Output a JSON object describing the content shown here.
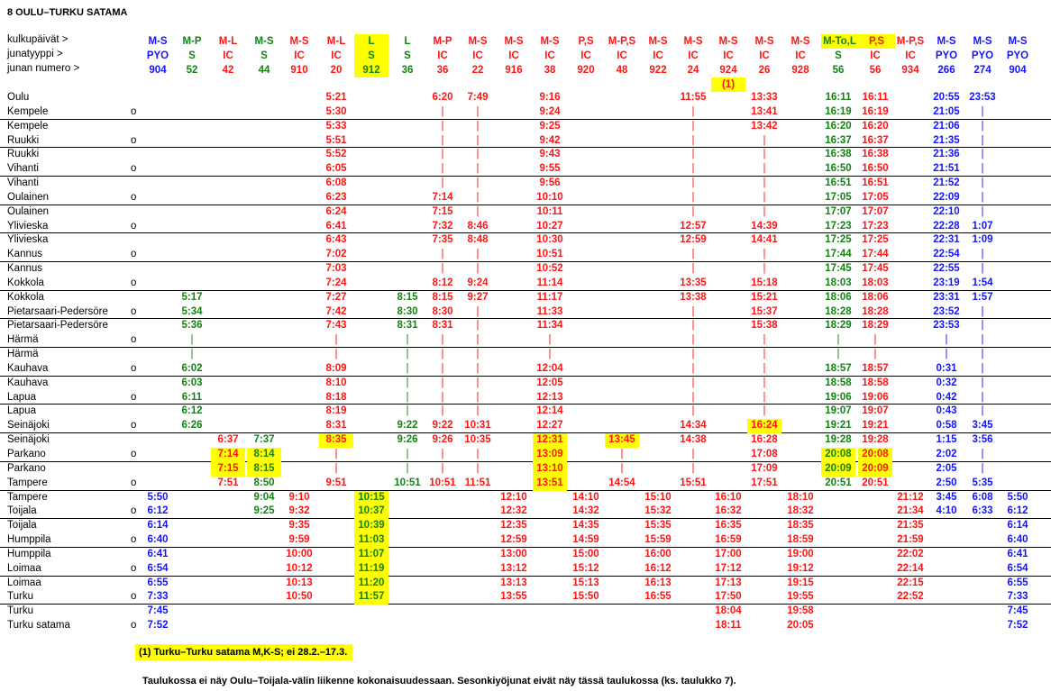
{
  "title": "8 OULU–TURKU SATAMA",
  "header_labels": {
    "days": "kulkupäivät >",
    "type": "junatyyppi >",
    "number": "junan numero >"
  },
  "colors": {
    "blue": "#1414ff",
    "green": "#148214",
    "red": "#ff1414",
    "highlight": "#ffff00"
  },
  "columns": [
    {
      "days": "M-S",
      "type": "PYO",
      "number": "904",
      "color": "#1414ff"
    },
    {
      "days": "M-P",
      "type": "S",
      "number": "52",
      "color": "#148214"
    },
    {
      "days": "M-L",
      "type": "IC",
      "number": "42",
      "color": "#ff1414"
    },
    {
      "days": "M-S",
      "type": "S",
      "number": "44",
      "color": "#148214"
    },
    {
      "days": "M-S",
      "type": "IC",
      "number": "910",
      "color": "#ff1414"
    },
    {
      "days": "M-L",
      "type": "IC",
      "number": "20",
      "color": "#ff1414"
    },
    {
      "days": "L",
      "type": "S",
      "number": "912",
      "color": "#148214",
      "highlight_header": true
    },
    {
      "days": "L",
      "type": "S",
      "number": "36",
      "color": "#148214"
    },
    {
      "days": "M-P",
      "type": "IC",
      "number": "36",
      "color": "#ff1414"
    },
    {
      "days": "M-S",
      "type": "IC",
      "number": "22",
      "color": "#ff1414"
    },
    {
      "days": "M-S",
      "type": "IC",
      "number": "916",
      "color": "#ff1414"
    },
    {
      "days": "M-S",
      "type": "IC",
      "number": "38",
      "color": "#ff1414"
    },
    {
      "days": "P,S",
      "type": "IC",
      "number": "920",
      "color": "#ff1414"
    },
    {
      "days": "M-P,S",
      "type": "IC",
      "number": "48",
      "color": "#ff1414"
    },
    {
      "days": "M-S",
      "type": "IC",
      "number": "922",
      "color": "#ff1414"
    },
    {
      "days": "M-S",
      "type": "IC",
      "number": "24",
      "color": "#ff1414"
    },
    {
      "days": "M-S",
      "type": "IC",
      "number": "924",
      "color": "#ff1414",
      "note": "(1)"
    },
    {
      "days": "M-S",
      "type": "IC",
      "number": "26",
      "color": "#ff1414"
    },
    {
      "days": "M-S",
      "type": "IC",
      "number": "928",
      "color": "#ff1414"
    },
    {
      "days": "M-To,L",
      "type": "S",
      "number": "56",
      "color": "#148214",
      "highlight_days": true
    },
    {
      "days": "P,S",
      "type": "IC",
      "number": "56",
      "color": "#ff1414",
      "highlight_days": true
    },
    {
      "days": "M-P,S",
      "type": "IC",
      "number": "934",
      "color": "#ff1414"
    },
    {
      "days": "M-S",
      "type": "PYO",
      "number": "266",
      "color": "#1414ff"
    },
    {
      "days": "M-S",
      "type": "PYO",
      "number": "274",
      "color": "#1414ff"
    },
    {
      "days": "M-S",
      "type": "PYO",
      "number": "904",
      "color": "#1414ff"
    }
  ],
  "rows": [
    {
      "station": "Oulu",
      "arr": "",
      "times": {
        "5": "5:21",
        "8": "6:20",
        "9": "7:49",
        "11": "9:16",
        "15": "11:55",
        "17": "13:33",
        "19": "16:11",
        "20": "16:11",
        "22": "20:55",
        "23": "23:53"
      }
    },
    {
      "station": "Kempele",
      "arr": "o",
      "times": {
        "5": "5:30",
        "8": "|",
        "9": "|",
        "11": "9:24",
        "15": "|",
        "17": "13:41",
        "19": "16:19",
        "20": "16:19",
        "22": "21:05",
        "23": "|"
      }
    },
    {
      "station": "Kempele",
      "arr": "",
      "times": {
        "5": "5:33",
        "8": "|",
        "9": "|",
        "11": "9:25",
        "15": "|",
        "17": "13:42",
        "19": "16:20",
        "20": "16:20",
        "22": "21:06",
        "23": "|"
      }
    },
    {
      "station": "Ruukki",
      "arr": "o",
      "times": {
        "5": "5:51",
        "8": "|",
        "9": "|",
        "11": "9:42",
        "15": "|",
        "17": "|",
        "19": "16:37",
        "20": "16:37",
        "22": "21:35",
        "23": "|"
      }
    },
    {
      "station": "Ruukki",
      "arr": "",
      "times": {
        "5": "5:52",
        "8": "|",
        "9": "|",
        "11": "9:43",
        "15": "|",
        "17": "|",
        "19": "16:38",
        "20": "16:38",
        "22": "21:36",
        "23": "|"
      }
    },
    {
      "station": "Vihanti",
      "arr": "o",
      "times": {
        "5": "6:05",
        "8": "|",
        "9": "|",
        "11": "9:55",
        "15": "|",
        "17": "|",
        "19": "16:50",
        "20": "16:50",
        "22": "21:51",
        "23": "|"
      }
    },
    {
      "station": "Vihanti",
      "arr": "",
      "times": {
        "5": "6:08",
        "8": "|",
        "9": "|",
        "11": "9:56",
        "15": "|",
        "17": "|",
        "19": "16:51",
        "20": "16:51",
        "22": "21:52",
        "23": "|"
      }
    },
    {
      "station": "Oulainen",
      "arr": "o",
      "times": {
        "5": "6:23",
        "8": "7:14",
        "9": "|",
        "11": "10:10",
        "15": "|",
        "17": "|",
        "19": "17:05",
        "20": "17:05",
        "22": "22:09",
        "23": "|"
      }
    },
    {
      "station": "Oulainen",
      "arr": "",
      "times": {
        "5": "6:24",
        "8": "7:15",
        "9": "|",
        "11": "10:11",
        "15": "|",
        "17": "|",
        "19": "17:07",
        "20": "17:07",
        "22": "22:10",
        "23": "|"
      }
    },
    {
      "station": "Ylivieska",
      "arr": "o",
      "times": {
        "5": "6:41",
        "8": "7:32",
        "9": "8:46",
        "11": "10:27",
        "15": "12:57",
        "17": "14:39",
        "19": "17:23",
        "20": "17:23",
        "22": "22:28",
        "23": "1:07"
      }
    },
    {
      "station": "Ylivieska",
      "arr": "",
      "times": {
        "5": "6:43",
        "8": "7:35",
        "9": "8:48",
        "11": "10:30",
        "15": "12:59",
        "17": "14:41",
        "19": "17:25",
        "20": "17:25",
        "22": "22:31",
        "23": "1:09"
      }
    },
    {
      "station": "Kannus",
      "arr": "o",
      "times": {
        "5": "7:02",
        "8": "|",
        "9": "|",
        "11": "10:51",
        "15": "|",
        "17": "|",
        "19": "17:44",
        "20": "17:44",
        "22": "22:54",
        "23": "|"
      }
    },
    {
      "station": "Kannus",
      "arr": "",
      "times": {
        "5": "7:03",
        "8": "|",
        "9": "|",
        "11": "10:52",
        "15": "|",
        "17": "|",
        "19": "17:45",
        "20": "17:45",
        "22": "22:55",
        "23": "|"
      }
    },
    {
      "station": "Kokkola",
      "arr": "o",
      "times": {
        "5": "7:24",
        "8": "8:12",
        "9": "9:24",
        "11": "11:14",
        "15": "13:35",
        "17": "15:18",
        "19": "18:03",
        "20": "18:03",
        "22": "23:19",
        "23": "1:54"
      }
    },
    {
      "station": "Kokkola",
      "arr": "",
      "times": {
        "1": "5:17",
        "5": "7:27",
        "7": "8:15",
        "8": "8:15",
        "9": "9:27",
        "11": "11:17",
        "15": "13:38",
        "17": "15:21",
        "19": "18:06",
        "20": "18:06",
        "22": "23:31",
        "23": "1:57"
      }
    },
    {
      "station": "Pietarsaari-Pedersöre",
      "arr": "o",
      "times": {
        "1": "5:34",
        "5": "7:42",
        "7": "8:30",
        "8": "8:30",
        "9": "|",
        "11": "11:33",
        "15": "|",
        "17": "15:37",
        "19": "18:28",
        "20": "18:28",
        "22": "23:52",
        "23": "|"
      }
    },
    {
      "station": "Pietarsaari-Pedersöre",
      "arr": "",
      "times": {
        "1": "5:36",
        "5": "7:43",
        "7": "8:31",
        "8": "8:31",
        "9": "|",
        "11": "11:34",
        "15": "|",
        "17": "15:38",
        "19": "18:29",
        "20": "18:29",
        "22": "23:53",
        "23": "|"
      }
    },
    {
      "station": "Härmä",
      "arr": "o",
      "times": {
        "1": "|",
        "5": "|",
        "7": "|",
        "8": "|",
        "9": "|",
        "11": "|",
        "15": "|",
        "17": "|",
        "19": "|",
        "20": "|",
        "22": "|",
        "23": "|"
      }
    },
    {
      "station": "Härmä",
      "arr": "",
      "times": {
        "1": "|",
        "5": "|",
        "7": "|",
        "8": "|",
        "9": "|",
        "11": "|",
        "15": "|",
        "17": "|",
        "19": "|",
        "20": "|",
        "22": "|",
        "23": "|"
      }
    },
    {
      "station": "Kauhava",
      "arr": "o",
      "times": {
        "1": "6:02",
        "5": "8:09",
        "7": "|",
        "8": "|",
        "9": "|",
        "11": "12:04",
        "15": "|",
        "17": "|",
        "19": "18:57",
        "20": "18:57",
        "22": "0:31",
        "23": "|"
      }
    },
    {
      "station": "Kauhava",
      "arr": "",
      "times": {
        "1": "6:03",
        "5": "8:10",
        "7": "|",
        "8": "|",
        "9": "|",
        "11": "12:05",
        "15": "|",
        "17": "|",
        "19": "18:58",
        "20": "18:58",
        "22": "0:32",
        "23": "|"
      }
    },
    {
      "station": "Lapua",
      "arr": "o",
      "times": {
        "1": "6:11",
        "5": "8:18",
        "7": "|",
        "8": "|",
        "9": "|",
        "11": "12:13",
        "15": "|",
        "17": "|",
        "19": "19:06",
        "20": "19:06",
        "22": "0:42",
        "23": "|"
      }
    },
    {
      "station": "Lapua",
      "arr": "",
      "times": {
        "1": "6:12",
        "5": "8:19",
        "7": "|",
        "8": "|",
        "9": "|",
        "11": "12:14",
        "15": "|",
        "17": "|",
        "19": "19:07",
        "20": "19:07",
        "22": "0:43",
        "23": "|"
      }
    },
    {
      "station": "Seinäjoki",
      "arr": "o",
      "times": {
        "1": "6:26",
        "5": "8:31",
        "7": "9:22",
        "8": "9:22",
        "9": "10:31",
        "11": "12:27",
        "15": "14:34",
        "17": "16:24",
        "19": "19:21",
        "20": "19:21",
        "22": "0:58",
        "23": "3:45"
      },
      "highlight": [
        17
      ]
    },
    {
      "station": "Seinäjoki",
      "arr": "",
      "times": {
        "2": "6:37",
        "3": "7:37",
        "5": "8:35",
        "7": "9:26",
        "8": "9:26",
        "9": "10:35",
        "11": "12:31",
        "13": "13:45",
        "15": "14:38",
        "17": "16:28",
        "19": "19:28",
        "20": "19:28",
        "22": "1:15",
        "23": "3:56"
      },
      "highlight": [
        5,
        11,
        13
      ]
    },
    {
      "station": "Parkano",
      "arr": "o",
      "times": {
        "2": "7:14",
        "3": "8:14",
        "5": "|",
        "7": "|",
        "8": "|",
        "9": "|",
        "11": "13:09",
        "13": "|",
        "15": "|",
        "17": "17:08",
        "19": "20:08",
        "20": "20:08",
        "22": "2:02",
        "23": "|"
      },
      "highlight": [
        2,
        3,
        11,
        19,
        20
      ]
    },
    {
      "station": "Parkano",
      "arr": "",
      "times": {
        "2": "7:15",
        "3": "8:15",
        "5": "|",
        "7": "|",
        "8": "|",
        "9": "|",
        "11": "13:10",
        "13": "|",
        "15": "|",
        "17": "17:09",
        "19": "20:09",
        "20": "20:09",
        "22": "2:05",
        "23": "|"
      },
      "highlight": [
        2,
        3,
        11,
        19,
        20
      ]
    },
    {
      "station": "Tampere",
      "arr": "o",
      "times": {
        "2": "7:51",
        "3": "8:50",
        "5": "9:51",
        "7": "10:51",
        "8": "10:51",
        "9": "11:51",
        "11": "13:51",
        "13": "14:54",
        "15": "15:51",
        "17": "17:51",
        "19": "20:51",
        "20": "20:51",
        "22": "2:50",
        "23": "5:35"
      },
      "highlight": [
        11
      ]
    },
    {
      "station": "Tampere",
      "arr": "",
      "times": {
        "0": "5:50",
        "3": "9:04",
        "4": "9:10",
        "6": "10:15",
        "10": "12:10",
        "12": "14:10",
        "14": "15:10",
        "16": "16:10",
        "18": "18:10",
        "21": "21:12",
        "22": "3:45",
        "23": "6:08",
        "24": "5:50"
      },
      "highlight": [
        6
      ]
    },
    {
      "station": "Toijala",
      "arr": "o",
      "times": {
        "0": "6:12",
        "3": "9:25",
        "4": "9:32",
        "6": "10:37",
        "10": "12:32",
        "12": "14:32",
        "14": "15:32",
        "16": "16:32",
        "18": "18:32",
        "21": "21:34",
        "22": "4:10",
        "23": "6:33",
        "24": "6:12"
      },
      "highlight": [
        6
      ]
    },
    {
      "station": "Toijala",
      "arr": "",
      "times": {
        "0": "6:14",
        "4": "9:35",
        "6": "10:39",
        "10": "12:35",
        "12": "14:35",
        "14": "15:35",
        "16": "16:35",
        "18": "18:35",
        "21": "21:35",
        "24": "6:14"
      },
      "highlight": [
        6
      ]
    },
    {
      "station": "Humppila",
      "arr": "o",
      "times": {
        "0": "6:40",
        "4": "9:59",
        "6": "11:03",
        "10": "12:59",
        "12": "14:59",
        "14": "15:59",
        "16": "16:59",
        "18": "18:59",
        "21": "21:59",
        "24": "6:40"
      },
      "highlight": [
        6
      ]
    },
    {
      "station": "Humppila",
      "arr": "",
      "times": {
        "0": "6:41",
        "4": "10:00",
        "6": "11:07",
        "10": "13:00",
        "12": "15:00",
        "14": "16:00",
        "16": "17:00",
        "18": "19:00",
        "21": "22:02",
        "24": "6:41"
      },
      "highlight": [
        6
      ]
    },
    {
      "station": "Loimaa",
      "arr": "o",
      "times": {
        "0": "6:54",
        "4": "10:12",
        "6": "11:19",
        "10": "13:12",
        "12": "15:12",
        "14": "16:12",
        "16": "17:12",
        "18": "19:12",
        "21": "22:14",
        "24": "6:54"
      },
      "highlight": [
        6
      ]
    },
    {
      "station": "Loimaa",
      "arr": "",
      "times": {
        "0": "6:55",
        "4": "10:13",
        "6": "11:20",
        "10": "13:13",
        "12": "15:13",
        "14": "16:13",
        "16": "17:13",
        "18": "19:15",
        "21": "22:15",
        "24": "6:55"
      },
      "highlight": [
        6
      ]
    },
    {
      "station": "Turku",
      "arr": "o",
      "times": {
        "0": "7:33",
        "4": "10:50",
        "6": "11:57",
        "10": "13:55",
        "12": "15:50",
        "14": "16:55",
        "16": "17:50",
        "18": "19:55",
        "21": "22:52",
        "24": "7:33"
      },
      "highlight": [
        6
      ]
    },
    {
      "station": "Turku",
      "arr": "",
      "times": {
        "0": "7:45",
        "16": "18:04",
        "18": "19:58",
        "24": "7:45"
      }
    },
    {
      "station": "Turku satama",
      "arr": "o",
      "times": {
        "0": "7:52",
        "16": "18:11",
        "18": "20:05",
        "24": "7:52"
      }
    }
  ],
  "footnotes": {
    "note1": "(1) Turku–Turku satama M,K-S; ei 28.2.–17.3.",
    "general": "Taulukossa ei näy Oulu–Toijala-välin liikenne kokonaisuudessaan. Sesonkiyöjunat eivät näy tässä taulukossa (ks. taulukko 7)."
  }
}
